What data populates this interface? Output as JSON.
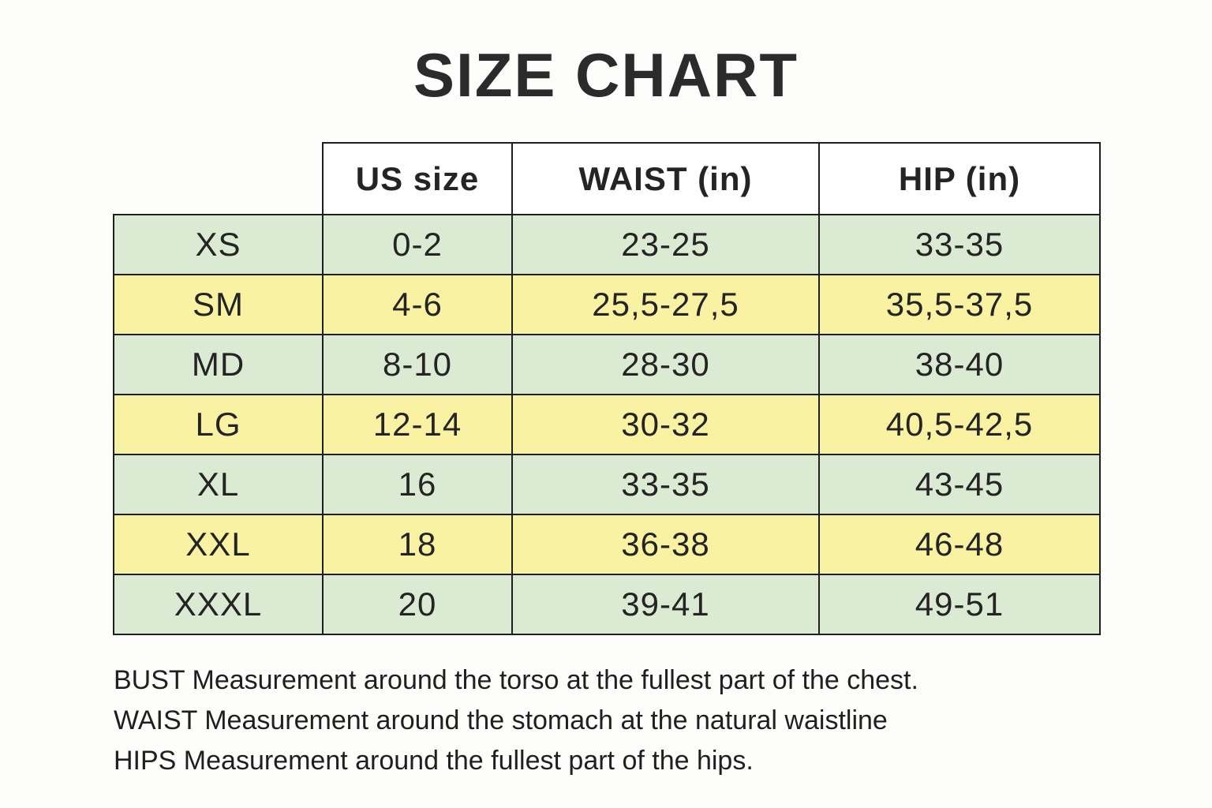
{
  "title": "SIZE CHART",
  "table": {
    "columns": [
      "",
      "US size",
      "WAIST (in)",
      "HIP (in)"
    ],
    "rows": [
      {
        "size": "XS",
        "us": "0-2",
        "waist": "23-25",
        "hip": "33-35"
      },
      {
        "size": "SM",
        "us": "4-6",
        "waist": "25,5-27,5",
        "hip": "35,5-37,5"
      },
      {
        "size": "MD",
        "us": "8-10",
        "waist": "28-30",
        "hip": "38-40"
      },
      {
        "size": "LG",
        "us": "12-14",
        "waist": "30-32",
        "hip": "40,5-42,5"
      },
      {
        "size": "XL",
        "us": "16",
        "waist": "33-35",
        "hip": "43-45"
      },
      {
        "size": "XXL",
        "us": "18",
        "waist": "36-38",
        "hip": "46-48"
      },
      {
        "size": "XXXL",
        "us": "20",
        "waist": "39-41",
        "hip": "49-51"
      }
    ],
    "colors": {
      "row_green": "#dbead2",
      "row_yellow": "#f9f2a3",
      "border": "#1f1f1f"
    }
  },
  "notes": [
    "BUST Measurement around the torso at the fullest part of the chest.",
    "WAIST Measurement around the stomach at the natural waistline",
    "HIPS Measurement around the fullest part of the hips."
  ]
}
